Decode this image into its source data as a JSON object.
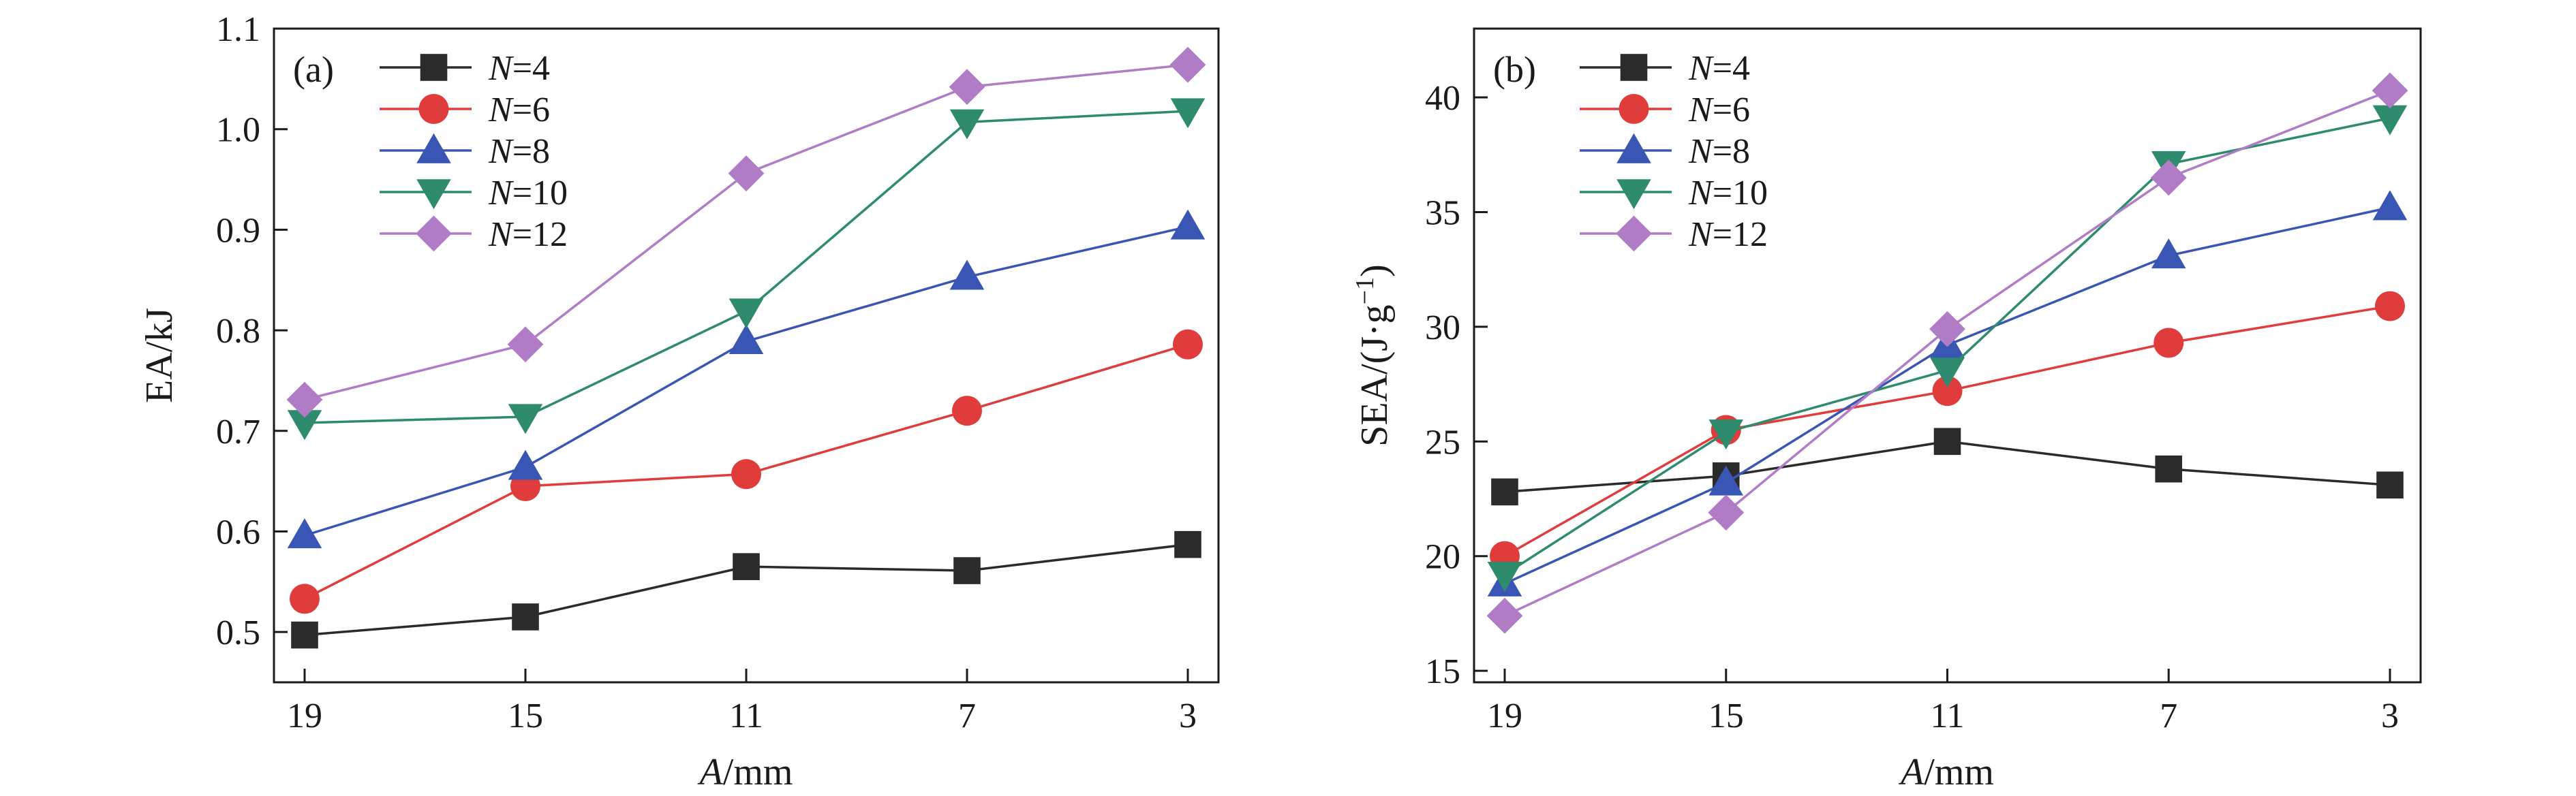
{
  "chart_data": [
    {
      "panel": "(a)",
      "type": "line",
      "xlabel_italic": "A",
      "xlabel_rest": "/mm",
      "ylabel": "EA/kJ",
      "categories": [
        "19",
        "15",
        "11",
        "7",
        "3"
      ],
      "ylim": [
        0.45,
        1.1
      ],
      "yticks": [
        0.5,
        0.6,
        0.7,
        0.8,
        0.9,
        1.0,
        1.1
      ],
      "ytick_labels": [
        "0.5",
        "0.6",
        "0.7",
        "0.8",
        "0.9",
        "1.0",
        "1.1"
      ],
      "legend_position": "top-left",
      "series": [
        {
          "name": "N=4",
          "name_italic": "N",
          "name_rest": "=4",
          "color": "#2b2b2b",
          "marker": "square",
          "values": [
            0.497,
            0.515,
            0.565,
            0.561,
            0.587
          ]
        },
        {
          "name": "N=6",
          "name_italic": "N",
          "name_rest": "=6",
          "color": "#e03c3c",
          "marker": "circle",
          "values": [
            0.533,
            0.645,
            0.657,
            0.72,
            0.786
          ]
        },
        {
          "name": "N=8",
          "name_italic": "N",
          "name_rest": "=8",
          "color": "#3a56b4",
          "marker": "triangle-up",
          "values": [
            0.596,
            0.664,
            0.789,
            0.853,
            0.903
          ]
        },
        {
          "name": "N=10",
          "name_italic": "N",
          "name_rest": "=10",
          "color": "#2e8b6e",
          "marker": "triangle-down",
          "values": [
            0.708,
            0.714,
            0.819,
            1.007,
            1.018
          ]
        },
        {
          "name": "N=12",
          "name_italic": "N",
          "name_rest": "=12",
          "color": "#b07cc6",
          "marker": "diamond",
          "values": [
            0.731,
            0.786,
            0.956,
            1.042,
            1.064
          ]
        }
      ]
    },
    {
      "panel": "(b)",
      "type": "line",
      "xlabel_italic": "A",
      "xlabel_rest": "/mm",
      "ylabel": "SEA/(J·g",
      "ylabel_sup": "−1",
      "ylabel_close": ")",
      "categories": [
        "19",
        "15",
        "11",
        "7",
        "3"
      ],
      "ylim": [
        14.5,
        43
      ],
      "yticks": [
        15,
        20,
        25,
        30,
        35,
        40
      ],
      "ytick_labels": [
        "15",
        "20",
        "25",
        "30",
        "35",
        "40"
      ],
      "legend_position": "top-left",
      "series": [
        {
          "name": "N=4",
          "name_italic": "N",
          "name_rest": "=4",
          "color": "#2b2b2b",
          "marker": "square",
          "values": [
            22.8,
            23.5,
            25.0,
            23.8,
            23.1
          ]
        },
        {
          "name": "N=6",
          "name_italic": "N",
          "name_rest": "=6",
          "color": "#e03c3c",
          "marker": "circle",
          "values": [
            20.0,
            25.5,
            27.2,
            29.3,
            30.9
          ]
        },
        {
          "name": "N=8",
          "name_italic": "N",
          "name_rest": "=8",
          "color": "#3a56b4",
          "marker": "triangle-up",
          "values": [
            18.8,
            23.2,
            29.2,
            33.1,
            35.2
          ]
        },
        {
          "name": "N=10",
          "name_italic": "N",
          "name_rest": "=10",
          "color": "#2e8b6e",
          "marker": "triangle-down",
          "values": [
            19.2,
            25.4,
            28.1,
            37.1,
            39.1
          ]
        },
        {
          "name": "N=12",
          "name_italic": "N",
          "name_rest": "=12",
          "color": "#b07cc6",
          "marker": "diamond",
          "values": [
            17.4,
            21.9,
            29.9,
            36.5,
            40.3
          ]
        }
      ]
    }
  ]
}
